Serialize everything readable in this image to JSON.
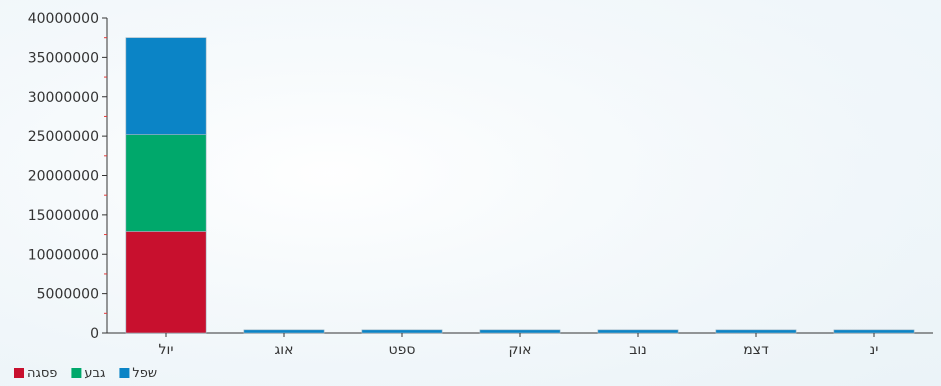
{
  "chart_data": {
    "type": "bar",
    "stacked": true,
    "categories": [
      "יול",
      "אוג",
      "ספט",
      "אוק",
      "נוב",
      "דצמ",
      "ינ"
    ],
    "series": [
      {
        "name": "פסגה",
        "color": "#c8102e",
        "values": [
          12900000,
          0,
          0,
          0,
          0,
          0,
          0
        ]
      },
      {
        "name": "גבע",
        "color": "#00a86b",
        "values": [
          12300000,
          0,
          0,
          0,
          0,
          0,
          0
        ]
      },
      {
        "name": "שפל",
        "color": "#0b84c6",
        "values": [
          12300000,
          400000,
          400000,
          400000,
          400000,
          400000,
          400000
        ]
      }
    ],
    "y_ticks": [
      "0",
      "5000000",
      "10000000",
      "15000000",
      "20000000",
      "25000000",
      "30000000",
      "35000000",
      "40000000"
    ],
    "ylim": [
      0,
      40000000
    ],
    "grid": false,
    "legend_placement": "bottom-left"
  }
}
